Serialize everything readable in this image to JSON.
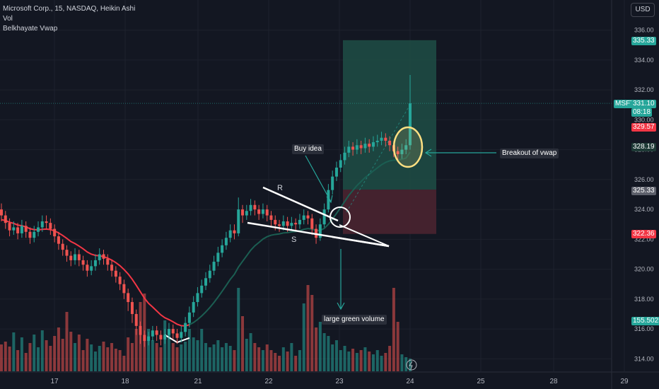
{
  "header": {
    "symbol_line": "Microsoft Corp., 15, NASDAQ, Heikin Ashi",
    "indicator_1": "Vol",
    "indicator_2": "Belkhayate Vwap"
  },
  "currency_button": "USD",
  "colors": {
    "background": "#131722",
    "up": "#26a69a",
    "down": "#ef5350",
    "vwap_red": "#f23645",
    "vwap_green": "#1b5e52",
    "target_zone": "#1e4d45",
    "stop_zone": "#4a2330",
    "annotation_white": "#ffffff",
    "highlight_yellow": "#ffe082"
  },
  "price_labels": {
    "msft_symbol": "MSFT",
    "msft_price": "331.10",
    "msft_timer": "08:18",
    "target": "335.33",
    "level_red": "329.57",
    "level_dark": "328.19",
    "entry": "325.33",
    "stop": "322.36",
    "volume": "155.502K"
  },
  "annotations": {
    "buy_idea": "Buy idea",
    "breakout": "Breakout of vwap",
    "large_volume": "large green volume",
    "resistance": "R",
    "support": "S"
  },
  "chart_data": {
    "type": "candlestick",
    "y_axis": {
      "min": 313.4,
      "max": 336.6,
      "ticks": [
        314,
        316,
        318,
        320,
        322,
        324,
        326,
        328,
        330,
        332,
        334,
        336
      ],
      "tick_labels": [
        "314.00",
        "316.00",
        "318.00",
        "320.00",
        "322.00",
        "324.00",
        "326.00",
        "328.00",
        "330.00",
        "332.00",
        "334.00",
        "336.00"
      ]
    },
    "x_axis": {
      "tick_labels": [
        "17",
        "18",
        "21",
        "22",
        "23",
        "24",
        "25",
        "28",
        "29"
      ]
    },
    "grid": true,
    "trade_setup": {
      "entry": 325.33,
      "target": 335.33,
      "stop": 322.36
    },
    "current_price": 331.1,
    "series": [
      {
        "candles": [
          [
            324.0,
            323.6,
            324.4,
            323.2
          ],
          [
            323.6,
            323.1,
            323.9,
            322.7
          ],
          [
            323.1,
            322.6,
            323.4,
            322.2
          ],
          [
            322.6,
            322.8,
            323.2,
            322.3
          ],
          [
            322.8,
            322.4,
            323.1,
            322.0
          ],
          [
            322.4,
            322.9,
            323.3,
            322.1
          ],
          [
            322.9,
            322.5,
            323.2,
            322.1
          ],
          [
            322.5,
            322.1,
            322.8,
            321.7
          ],
          [
            322.1,
            322.5,
            322.9,
            321.8
          ],
          [
            322.5,
            322.8,
            323.2,
            322.2
          ],
          [
            322.8,
            323.2,
            323.6,
            322.5
          ],
          [
            323.2,
            323.1,
            323.6,
            322.7
          ],
          [
            323.1,
            322.7,
            323.4,
            322.3
          ],
          [
            322.7,
            322.2,
            323.0,
            321.8
          ],
          [
            322.2,
            321.7,
            322.5,
            321.3
          ],
          [
            321.7,
            321.3,
            322.0,
            320.9
          ],
          [
            321.3,
            320.9,
            321.6,
            320.5
          ],
          [
            320.9,
            320.6,
            321.2,
            320.2
          ],
          [
            320.6,
            321.0,
            321.4,
            320.3
          ],
          [
            321.0,
            320.6,
            321.3,
            320.2
          ],
          [
            320.6,
            320.3,
            320.9,
            319.9
          ],
          [
            320.3,
            319.9,
            320.6,
            319.5
          ],
          [
            319.9,
            320.2,
            320.6,
            319.6
          ],
          [
            320.2,
            320.6,
            321.0,
            319.9
          ],
          [
            320.6,
            321.0,
            321.4,
            320.3
          ],
          [
            321.0,
            320.7,
            321.3,
            320.3
          ],
          [
            320.7,
            320.3,
            321.0,
            319.9
          ],
          [
            320.3,
            319.9,
            320.6,
            319.5
          ],
          [
            319.9,
            319.5,
            320.2,
            319.1
          ],
          [
            319.5,
            319.0,
            319.8,
            318.6
          ],
          [
            319.0,
            318.4,
            319.3,
            318.0
          ],
          [
            318.4,
            317.8,
            318.7,
            317.2
          ],
          [
            317.8,
            317.0,
            318.1,
            316.4
          ],
          [
            317.0,
            316.2,
            317.3,
            315.6
          ],
          [
            316.2,
            315.6,
            316.5,
            315.0
          ],
          [
            315.6,
            315.2,
            315.9,
            314.8
          ],
          [
            315.2,
            315.5,
            315.8,
            314.9
          ],
          [
            315.5,
            315.9,
            316.2,
            315.2
          ],
          [
            315.9,
            315.6,
            316.2,
            315.2
          ],
          [
            315.6,
            315.3,
            315.9,
            314.9
          ],
          [
            315.3,
            315.6,
            316.0,
            315.0
          ],
          [
            315.6,
            316.0,
            316.4,
            315.3
          ],
          [
            316.0,
            315.7,
            316.3,
            315.3
          ],
          [
            315.7,
            315.4,
            316.0,
            315.0
          ],
          [
            315.4,
            315.8,
            316.2,
            315.1
          ],
          [
            315.8,
            316.4,
            316.8,
            315.5
          ],
          [
            316.4,
            317.1,
            317.5,
            316.1
          ],
          [
            317.1,
            317.8,
            318.2,
            316.8
          ],
          [
            317.8,
            318.4,
            318.8,
            317.5
          ],
          [
            318.4,
            318.9,
            319.3,
            318.1
          ],
          [
            318.9,
            319.4,
            319.8,
            318.6
          ],
          [
            319.4,
            319.9,
            320.3,
            319.1
          ],
          [
            319.9,
            320.5,
            320.9,
            319.6
          ],
          [
            320.5,
            321.1,
            321.5,
            320.2
          ],
          [
            321.1,
            321.6,
            322.0,
            320.8
          ],
          [
            321.6,
            322.1,
            322.5,
            321.3
          ],
          [
            322.1,
            322.6,
            323.0,
            321.8
          ],
          [
            322.6,
            322.4,
            323.0,
            322.0
          ],
          [
            322.4,
            324.0,
            324.8,
            322.2
          ],
          [
            324.0,
            323.6,
            324.3,
            323.1
          ],
          [
            323.6,
            323.9,
            324.3,
            323.3
          ],
          [
            323.9,
            324.3,
            324.7,
            323.6
          ],
          [
            324.3,
            324.0,
            324.6,
            323.6
          ],
          [
            324.0,
            323.7,
            324.3,
            323.3
          ],
          [
            323.7,
            324.0,
            324.4,
            323.4
          ],
          [
            324.0,
            323.6,
            324.3,
            323.2
          ],
          [
            323.6,
            323.3,
            323.9,
            322.9
          ],
          [
            323.3,
            323.0,
            323.6,
            322.6
          ],
          [
            323.0,
            322.9,
            323.3,
            322.5
          ],
          [
            322.9,
            323.2,
            323.6,
            322.6
          ],
          [
            323.2,
            322.9,
            323.5,
            322.5
          ],
          [
            322.9,
            323.1,
            323.5,
            322.6
          ],
          [
            323.1,
            323.0,
            323.4,
            322.6
          ],
          [
            323.0,
            323.3,
            323.7,
            322.7
          ],
          [
            323.3,
            323.6,
            324.0,
            323.0
          ],
          [
            323.6,
            323.4,
            323.9,
            323.0
          ],
          [
            323.4,
            322.7,
            323.7,
            322.3
          ],
          [
            322.7,
            322.1,
            323.0,
            321.7
          ],
          [
            322.1,
            323.0,
            323.4,
            321.9
          ],
          [
            323.0,
            324.0,
            324.4,
            322.8
          ],
          [
            324.0,
            325.3,
            325.7,
            323.8
          ],
          [
            325.3,
            326.2,
            326.6,
            325.0
          ],
          [
            326.2,
            326.8,
            327.2,
            325.9
          ],
          [
            326.8,
            327.3,
            327.7,
            326.5
          ],
          [
            327.3,
            327.8,
            328.2,
            327.0
          ],
          [
            327.8,
            328.2,
            328.6,
            327.5
          ],
          [
            328.2,
            328.0,
            328.5,
            327.6
          ],
          [
            328.0,
            328.3,
            328.7,
            327.7
          ],
          [
            328.3,
            328.1,
            328.6,
            327.7
          ],
          [
            328.1,
            328.4,
            328.8,
            327.8
          ],
          [
            328.4,
            328.2,
            328.7,
            327.8
          ],
          [
            328.2,
            328.5,
            328.9,
            327.9
          ],
          [
            328.5,
            328.6,
            329.0,
            328.2
          ],
          [
            328.6,
            328.8,
            329.2,
            328.3
          ],
          [
            328.8,
            328.6,
            329.1,
            328.2
          ],
          [
            328.6,
            328.3,
            328.9,
            327.9
          ],
          [
            328.3,
            327.9,
            328.6,
            327.5
          ],
          [
            327.9,
            327.7,
            328.2,
            327.3
          ],
          [
            327.7,
            328.0,
            328.4,
            327.4
          ],
          [
            328.0,
            328.3,
            328.7,
            327.7
          ],
          [
            328.3,
            331.1,
            333.0,
            328.0
          ]
        ]
      },
      {
        "volumes": [
          38,
          42,
          35,
          55,
          30,
          48,
          26,
          40,
          52,
          34,
          58,
          44,
          36,
          50,
          62,
          46,
          84,
          56,
          40,
          52,
          30,
          46,
          38,
          28,
          36,
          42,
          34,
          40,
          32,
          30,
          22,
          48,
          40,
          60,
          98,
          110,
          60,
          44,
          40,
          34,
          72,
          52,
          40,
          34,
          38,
          42,
          60,
          48,
          44,
          60,
          40,
          34,
          38,
          44,
          34,
          40,
          36,
          30,
          118,
          78,
          46,
          54,
          40,
          34,
          30,
          38,
          30,
          26,
          22,
          34,
          28,
          40,
          22,
          30,
          96,
          122,
          108,
          62,
          70,
          54,
          50,
          38,
          44,
          30,
          36,
          28,
          32,
          26,
          30,
          34,
          28,
          24,
          30,
          22,
          26,
          36,
          118,
          70,
          24,
          20,
          18
        ]
      }
    ]
  }
}
